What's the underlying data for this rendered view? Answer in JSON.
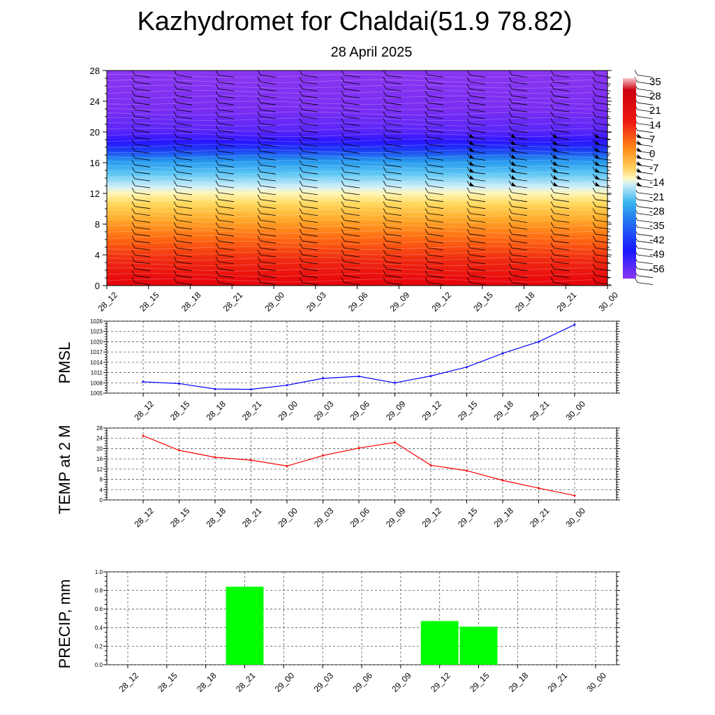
{
  "header": {
    "title": "Kazhydromet for Chaldai(51.9 78.82)",
    "subtitle": "28 April 2025"
  },
  "time_labels": [
    "28_12",
    "28_15",
    "28_18",
    "28_21",
    "29_00",
    "29_03",
    "29_06",
    "29_09",
    "29_12",
    "29_15",
    "29_18",
    "29_21",
    "30_00"
  ],
  "chart_data": [
    {
      "type": "heatmap",
      "title": "",
      "x": [
        "28_12",
        "28_15",
        "28_18",
        "28_21",
        "29_00",
        "29_03",
        "29_06",
        "29_09",
        "29_12",
        "29_15",
        "29_18",
        "29_21",
        "30_00"
      ],
      "ylim": [
        0,
        28
      ],
      "y_ticks": [
        0,
        4,
        8,
        12,
        16,
        20,
        24,
        28
      ],
      "legend_levels": [
        35,
        28,
        21,
        14,
        7,
        0,
        -7,
        -14,
        -21,
        -28,
        -35,
        -42,
        -49,
        -56
      ],
      "legend_placement": "right",
      "overlay": "wind barbs",
      "colors": {
        "warm": "#e8000a",
        "mid": "#ffe070",
        "cool": "#2ab0f0",
        "cold": "#2a10ff",
        "top": "#8a2ff0"
      }
    },
    {
      "type": "line",
      "ylabel": "PMSL",
      "categories": [
        "28_12",
        "28_15",
        "28_18",
        "28_21",
        "29_00",
        "29_03",
        "29_06",
        "29_09",
        "29_12",
        "29_15",
        "29_18",
        "29_21",
        "30_00"
      ],
      "values": [
        1008.3,
        1007.8,
        1006.2,
        1006.1,
        1007.3,
        1009.3,
        1009.9,
        1008.0,
        1010.0,
        1012.6,
        1016.6,
        1020.0,
        1025.0
      ],
      "ylim": [
        1005,
        1026
      ],
      "y_ticks": [
        1005,
        1008,
        1011,
        1014,
        1017,
        1020,
        1023,
        1026
      ],
      "line_color": "#0000ff",
      "grid": true
    },
    {
      "type": "line",
      "ylabel": "TEMP at 2 M",
      "categories": [
        "28_12",
        "28_15",
        "28_18",
        "28_21",
        "29_00",
        "29_03",
        "29_06",
        "29_09",
        "29_12",
        "29_15",
        "29_18",
        "29_21",
        "30_00"
      ],
      "values": [
        25.0,
        19.3,
        16.6,
        15.5,
        13.2,
        17.3,
        20.2,
        22.4,
        13.5,
        11.4,
        7.6,
        4.6,
        1.7
      ],
      "ylim": [
        0,
        28
      ],
      "y_ticks": [
        0,
        4,
        8,
        12,
        16,
        20,
        24,
        28
      ],
      "line_color": "#ff0000",
      "grid": true
    },
    {
      "type": "bar",
      "ylabel": "PRECIP, mm",
      "categories": [
        "28_12",
        "28_15",
        "28_18",
        "28_21",
        "29_00",
        "29_03",
        "29_06",
        "29_09",
        "29_12",
        "29_15",
        "29_18",
        "29_21",
        "30_00"
      ],
      "values": [
        0,
        0,
        0,
        0.84,
        0,
        0,
        0,
        0,
        0.47,
        0.41,
        0,
        0,
        0
      ],
      "ylim": [
        0,
        1.0
      ],
      "y_ticks": [
        "0.0",
        "0.2",
        "0.4",
        "0.6",
        "0.8",
        "1.0"
      ],
      "bar_color": "#00ff00",
      "grid": true
    }
  ]
}
